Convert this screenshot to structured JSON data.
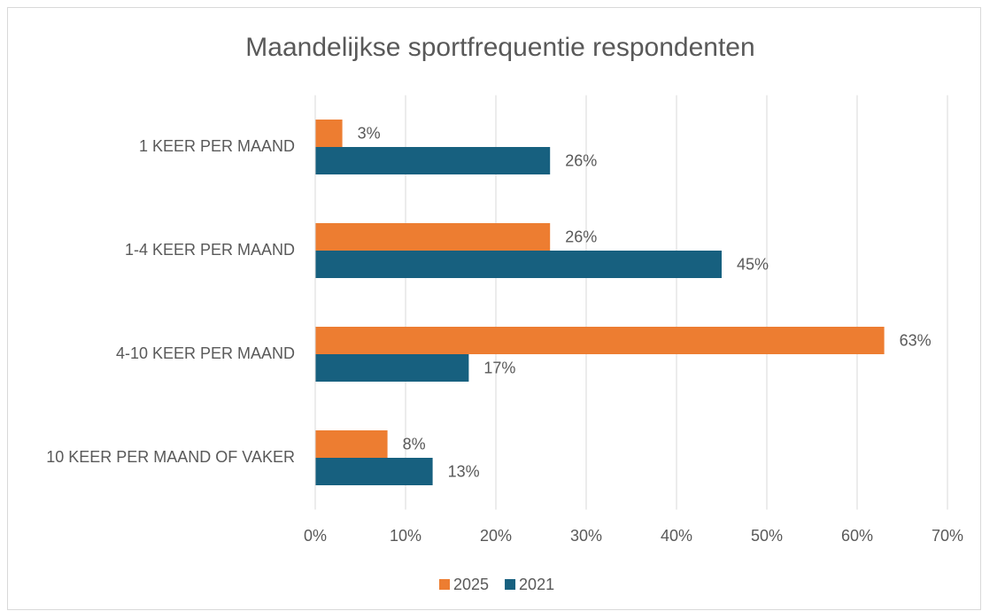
{
  "chart_data": {
    "type": "bar",
    "orientation": "horizontal",
    "title": "Maandelijkse sportfrequentie respondenten",
    "categories": [
      "1 KEER PER MAAND",
      "1-4 KEER PER MAAND",
      "4-10 KEER PER MAAND",
      "10 KEER PER MAAND OF VAKER"
    ],
    "series": [
      {
        "name": "2025",
        "color": "#ED7D31",
        "values": [
          3,
          26,
          63,
          8
        ],
        "value_labels": [
          "3%",
          "26%",
          "63%",
          "8%"
        ]
      },
      {
        "name": "2021",
        "color": "#17607F",
        "values": [
          26,
          45,
          17,
          13
        ],
        "value_labels": [
          "26%",
          "45%",
          "17%",
          "13%"
        ]
      }
    ],
    "xlim": [
      0,
      70
    ],
    "xticks": [
      {
        "value": 0,
        "label": "0%"
      },
      {
        "value": 10,
        "label": "10%"
      },
      {
        "value": 20,
        "label": "20%"
      },
      {
        "value": 30,
        "label": "30%"
      },
      {
        "value": 40,
        "label": "40%"
      },
      {
        "value": 50,
        "label": "50%"
      },
      {
        "value": 60,
        "label": "60%"
      },
      {
        "value": 70,
        "label": "70%"
      }
    ],
    "grid": true,
    "legend": "bottom"
  }
}
